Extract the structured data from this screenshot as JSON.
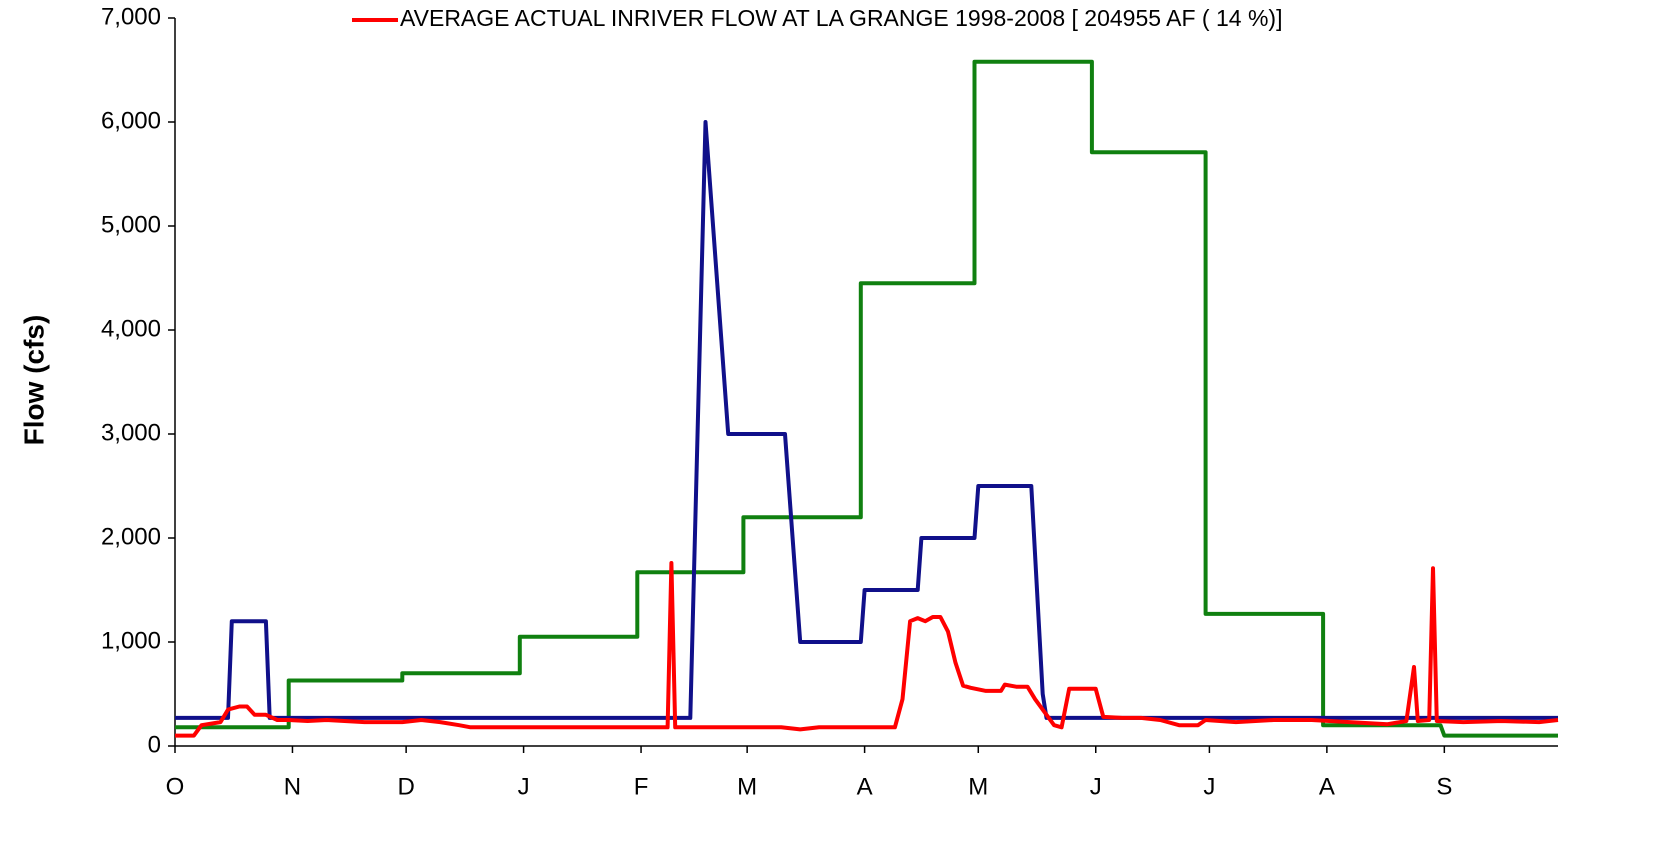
{
  "chart_data": {
    "type": "line",
    "y_label": "Flow (cfs)",
    "xlim": [
      0,
      365
    ],
    "xticks": [
      {
        "value": 0,
        "label": "O"
      },
      {
        "value": 31,
        "label": "N"
      },
      {
        "value": 61,
        "label": "D"
      },
      {
        "value": 92,
        "label": "J"
      },
      {
        "value": 123,
        "label": "F"
      },
      {
        "value": 151,
        "label": "M"
      },
      {
        "value": 182,
        "label": "A"
      },
      {
        "value": 212,
        "label": "M"
      },
      {
        "value": 243,
        "label": "J"
      },
      {
        "value": 273,
        "label": "J"
      },
      {
        "value": 304,
        "label": "A"
      },
      {
        "value": 335,
        "label": "S"
      }
    ],
    "ylim": [
      0,
      7000
    ],
    "yticks": [
      0,
      {
        "value": 1000,
        "label": "1,000"
      },
      {
        "value": 2000,
        "label": "2,000"
      },
      {
        "value": 3000,
        "label": "3,000"
      },
      {
        "value": 4000,
        "label": "4,000"
      },
      {
        "value": 5000,
        "label": "5,000"
      },
      {
        "value": 6000,
        "label": "6,000"
      },
      {
        "value": 7000,
        "label": "7,000"
      }
    ],
    "grid": false,
    "legend": "top-right",
    "series": [
      {
        "color": "#108010",
        "x": [
          0,
          30,
          30,
          60,
          60,
          91,
          91,
          122,
          122,
          150,
          150,
          181,
          181,
          211,
          211,
          242,
          242,
          272,
          272,
          303,
          303,
          334,
          335,
          365
        ],
        "values": [
          180,
          180,
          630,
          630,
          700,
          700,
          1050,
          1050,
          1670,
          1670,
          2200,
          2200,
          4450,
          4450,
          6580,
          6580,
          5710,
          5710,
          1270,
          1270,
          200,
          200,
          100,
          100
        ]
      },
      {
        "color": "#10108a",
        "x": [
          0,
          14,
          15,
          24,
          25,
          136,
          140,
          146,
          161,
          165,
          181,
          182,
          196,
          197,
          211,
          212,
          226,
          229,
          230,
          365
        ],
        "values": [
          270,
          270,
          1200,
          1200,
          270,
          270,
          6000,
          3000,
          3000,
          1000,
          1000,
          1500,
          1500,
          2000,
          2000,
          2500,
          2500,
          500,
          270,
          270
        ]
      },
      {
        "name": "AVERAGE ACTUAL INRIVER FLOW AT LA GRANGE 1998-2008 [ 204955 AF ( 14 %)]",
        "color": "#ff0000",
        "x": [
          0,
          5,
          7,
          12,
          14,
          17,
          19,
          21,
          24,
          27,
          30,
          35,
          40,
          50,
          60,
          65,
          70,
          75,
          78,
          85,
          100,
          120,
          130,
          131,
          132,
          150,
          160,
          165,
          170,
          181,
          190,
          192,
          194,
          196,
          198,
          200,
          202,
          204,
          206,
          208,
          210,
          214,
          218,
          219,
          222,
          225,
          227,
          230,
          232,
          234,
          236,
          240,
          243,
          245,
          250,
          255,
          260,
          265,
          270,
          272,
          280,
          290,
          300,
          310,
          320,
          325,
          327,
          328,
          331,
          332,
          333,
          340,
          350,
          360,
          365
        ],
        "values": [
          100,
          100,
          200,
          230,
          350,
          380,
          380,
          300,
          300,
          250,
          250,
          240,
          250,
          230,
          230,
          250,
          230,
          200,
          180,
          180,
          180,
          180,
          180,
          1760,
          180,
          180,
          180,
          160,
          180,
          180,
          180,
          450,
          1200,
          1230,
          1200,
          1240,
          1240,
          1100,
          800,
          580,
          560,
          530,
          530,
          590,
          570,
          570,
          450,
          300,
          200,
          180,
          550,
          550,
          550,
          280,
          270,
          270,
          250,
          200,
          200,
          250,
          230,
          250,
          250,
          230,
          210,
          240,
          760,
          240,
          250,
          1710,
          240,
          230,
          240,
          230,
          250
        ]
      }
    ]
  }
}
